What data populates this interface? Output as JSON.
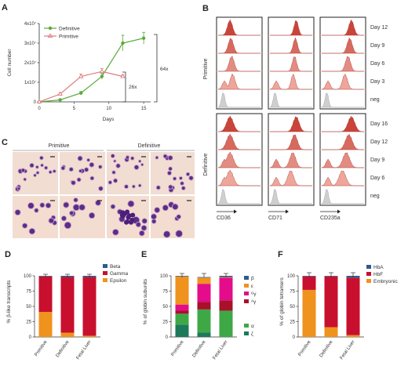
{
  "panels": {
    "a": "A",
    "b": "B",
    "c": "C",
    "d": "D",
    "e": "E",
    "f": "F"
  },
  "panel_a": {
    "ylabel": "Cell number",
    "xlabel": "Days",
    "x_ticks": [
      "0",
      "5",
      "10",
      "15"
    ],
    "y_ticks": [
      "0",
      "1x10⁷",
      "2x10⁷",
      "3x10⁷",
      "4x10⁷"
    ],
    "fold_labels": [
      "64x",
      "26x"
    ]
  },
  "panel_b": {
    "group_labels": [
      "Primitive",
      "Definitive"
    ],
    "primitive_rows": [
      "Day 12",
      "Day 9",
      "Day 6",
      "Day 3",
      "neg"
    ],
    "definitive_rows": [
      "Day 16",
      "Day 12",
      "Day 9",
      "Day 6",
      "neg"
    ],
    "markers": [
      "CD36",
      "CD71",
      "CD235a"
    ]
  },
  "panel_c": {
    "headers": [
      "Primitive",
      "Definitive"
    ]
  },
  "panel_d": {
    "ylabel": "% β-like transcripts",
    "y_ticks": [
      "0",
      "25",
      "50",
      "75",
      "100"
    ],
    "categories": [
      "Primitive",
      "Definitive",
      "Fetal Liver"
    ],
    "legend": [
      "Beta",
      "Gamma",
      "Epsilon"
    ]
  },
  "panel_e": {
    "ylabel": "% of globin subunits",
    "y_ticks": [
      "0",
      "25",
      "50",
      "75",
      "100"
    ],
    "categories": [
      "Primitive",
      "Definitive",
      "Fetal Liver"
    ],
    "legend_top": [
      "β",
      "ε",
      "ᴳγ",
      "ᴬγ"
    ],
    "legend_bottom": [
      "α",
      "ζ"
    ]
  },
  "panel_f": {
    "ylabel": "% of globin tetramers",
    "y_ticks": [
      "0",
      "25",
      "50",
      "75",
      "100"
    ],
    "categories": [
      "Primitive",
      "Definitive",
      "Fetal Liver"
    ],
    "legend": [
      "HbA",
      "HbF",
      "Embryonic"
    ]
  },
  "colors": {
    "definitive_line": "#5aaa3c",
    "primitive_line": "#e07b7b",
    "hist_dark": "#c9453a",
    "hist_light": "#f2b8ae",
    "neg_gray": "#cfcfcf",
    "beta": "#2a5d8f",
    "gamma": "#c8102e",
    "epsilon": "#f0921e",
    "gg": "#e40c8a",
    "ag": "#a8102b",
    "alpha": "#3ea846",
    "zeta": "#1a7a5a"
  },
  "chart_data": [
    {
      "type": "line",
      "xlabel": "Days",
      "ylabel": "Cell number",
      "xlim": [
        0,
        16
      ],
      "ylim": [
        0,
        40000000
      ],
      "series": [
        {
          "name": "Definitive",
          "x": [
            0,
            3,
            6,
            9,
            12,
            15
          ],
          "y": [
            0,
            1000000,
            4500000,
            13000000,
            30000000,
            32500000
          ],
          "err": [
            0,
            300000,
            800000,
            1500000,
            4000000,
            3000000
          ]
        },
        {
          "name": "Primitive",
          "x": [
            0,
            3,
            6,
            9,
            12
          ],
          "y": [
            0,
            4000000,
            13000000,
            15500000,
            13000000
          ],
          "err": [
            0,
            600000,
            1200000,
            1500000,
            800000
          ]
        }
      ]
    },
    {
      "type": "bar",
      "ylabel": "% β-like transcripts",
      "ylim": [
        0,
        100
      ],
      "categories": [
        "Primitive",
        "Definitive",
        "Fetal Liver"
      ],
      "series": [
        {
          "name": "Epsilon",
          "values": [
            41,
            7,
            2
          ]
        },
        {
          "name": "Gamma",
          "values": [
            58,
            91,
            96
          ]
        },
        {
          "name": "Beta",
          "values": [
            1,
            2,
            2
          ]
        }
      ]
    },
    {
      "type": "bar",
      "ylabel": "% of globin subunits",
      "ylim": [
        0,
        100
      ],
      "categories": [
        "Primitive",
        "Definitive",
        "Fetal Liver"
      ],
      "series": [
        {
          "name": "ζ",
          "values": [
            20,
            7,
            0
          ]
        },
        {
          "name": "α",
          "values": [
            18,
            38,
            43
          ]
        },
        {
          "name": "ᴬγ",
          "values": [
            5,
            12,
            17
          ]
        },
        {
          "name": "ᴳγ",
          "values": [
            10,
            30,
            37
          ]
        },
        {
          "name": "ε",
          "values": [
            46,
            10,
            1
          ]
        },
        {
          "name": "β",
          "values": [
            1,
            1,
            2
          ]
        }
      ]
    },
    {
      "type": "bar",
      "ylabel": "% of globin tetramers",
      "ylim": [
        0,
        100
      ],
      "categories": [
        "Primitive",
        "Definitive",
        "Fetal Liver"
      ],
      "series": [
        {
          "name": "Embryonic",
          "values": [
            77,
            16,
            3
          ]
        },
        {
          "name": "HbF",
          "values": [
            22,
            83,
            94
          ]
        },
        {
          "name": "HbA",
          "values": [
            1,
            1,
            3
          ]
        }
      ]
    }
  ]
}
